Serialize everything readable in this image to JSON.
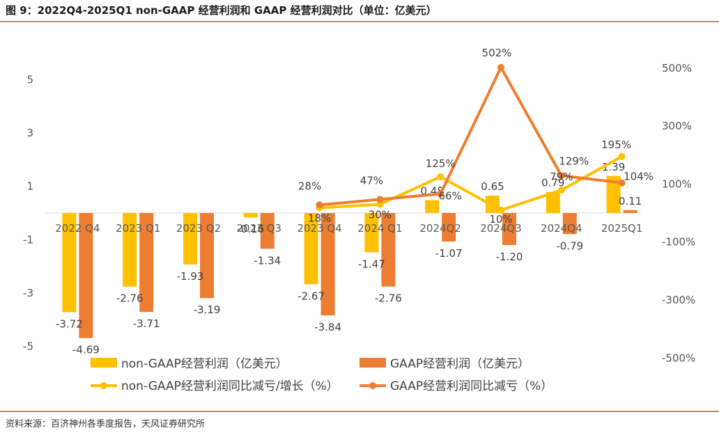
{
  "title": "图 9：2022Q4-2025Q1 non-GAAP 经营利润和 GAAP 经营利润对比（单位：亿美元）",
  "source": "资料来源：百济神州各季度报告，天风证券研究所",
  "chart_data": {
    "type": "bar+line",
    "categories": [
      "2022 Q4",
      "2023 Q1",
      "2023 Q2",
      "2023 Q3",
      "2023 Q4",
      "2024 Q1",
      "2024Q2",
      "2024Q3",
      "2024Q4",
      "2025Q1"
    ],
    "left_axis": {
      "range": [
        -5,
        5
      ],
      "ticks": [
        "5",
        "3",
        "1",
        "-1",
        "-3",
        "-5"
      ],
      "tick_values": [
        5,
        3,
        1,
        -1,
        -3,
        -5
      ]
    },
    "right_axis": {
      "range": [
        -500,
        500
      ],
      "ticks": [
        "500%",
        "300%",
        "100%",
        "-100%",
        "-300%",
        "-500%"
      ],
      "tick_values": [
        500,
        300,
        100,
        -100,
        -300,
        -500
      ]
    },
    "bar_series": [
      {
        "name": "non-GAAP经营利润（亿美元）",
        "color": "#ffc000",
        "values": [
          -3.72,
          -2.76,
          -1.93,
          -0.16,
          -2.67,
          -1.47,
          0.48,
          0.65,
          0.79,
          1.39
        ],
        "labels": [
          "-3.72",
          "-2.76",
          "-1.93",
          "-0.16",
          "-2.67",
          "-1.47",
          "0.48",
          "0.65",
          "0.79",
          "1.39"
        ]
      },
      {
        "name": "GAAP经营利润（亿美元）",
        "color": "#ed7d31",
        "values": [
          -4.69,
          -3.71,
          -3.19,
          -1.34,
          -3.84,
          -2.76,
          -1.07,
          -1.2,
          -0.79,
          0.11
        ],
        "labels": [
          "-4.69",
          "-3.71",
          "-3.19",
          "-1.34",
          "-3.84",
          "-2.76",
          "-1.07",
          "-1.20",
          "-0.79",
          "0.11"
        ]
      }
    ],
    "line_series": [
      {
        "name": "non-GAAP经营利润同比减亏/增长（%）",
        "color": "#ffc000",
        "start_index": 4,
        "values": [
          18,
          30,
          125,
          10,
          79,
          195
        ],
        "labels": [
          "18%",
          "30%",
          "125%",
          "10%",
          "79%",
          "195%"
        ]
      },
      {
        "name": "GAAP经营利润同比减亏（%）",
        "color": "#ed7d31",
        "start_index": 4,
        "values": [
          28,
          47,
          66,
          502,
          129,
          104
        ],
        "labels": [
          "28%",
          "47%",
          "66%",
          "502%",
          "129%",
          "104%"
        ]
      }
    ],
    "legend_position": "bottom",
    "grid": false
  }
}
